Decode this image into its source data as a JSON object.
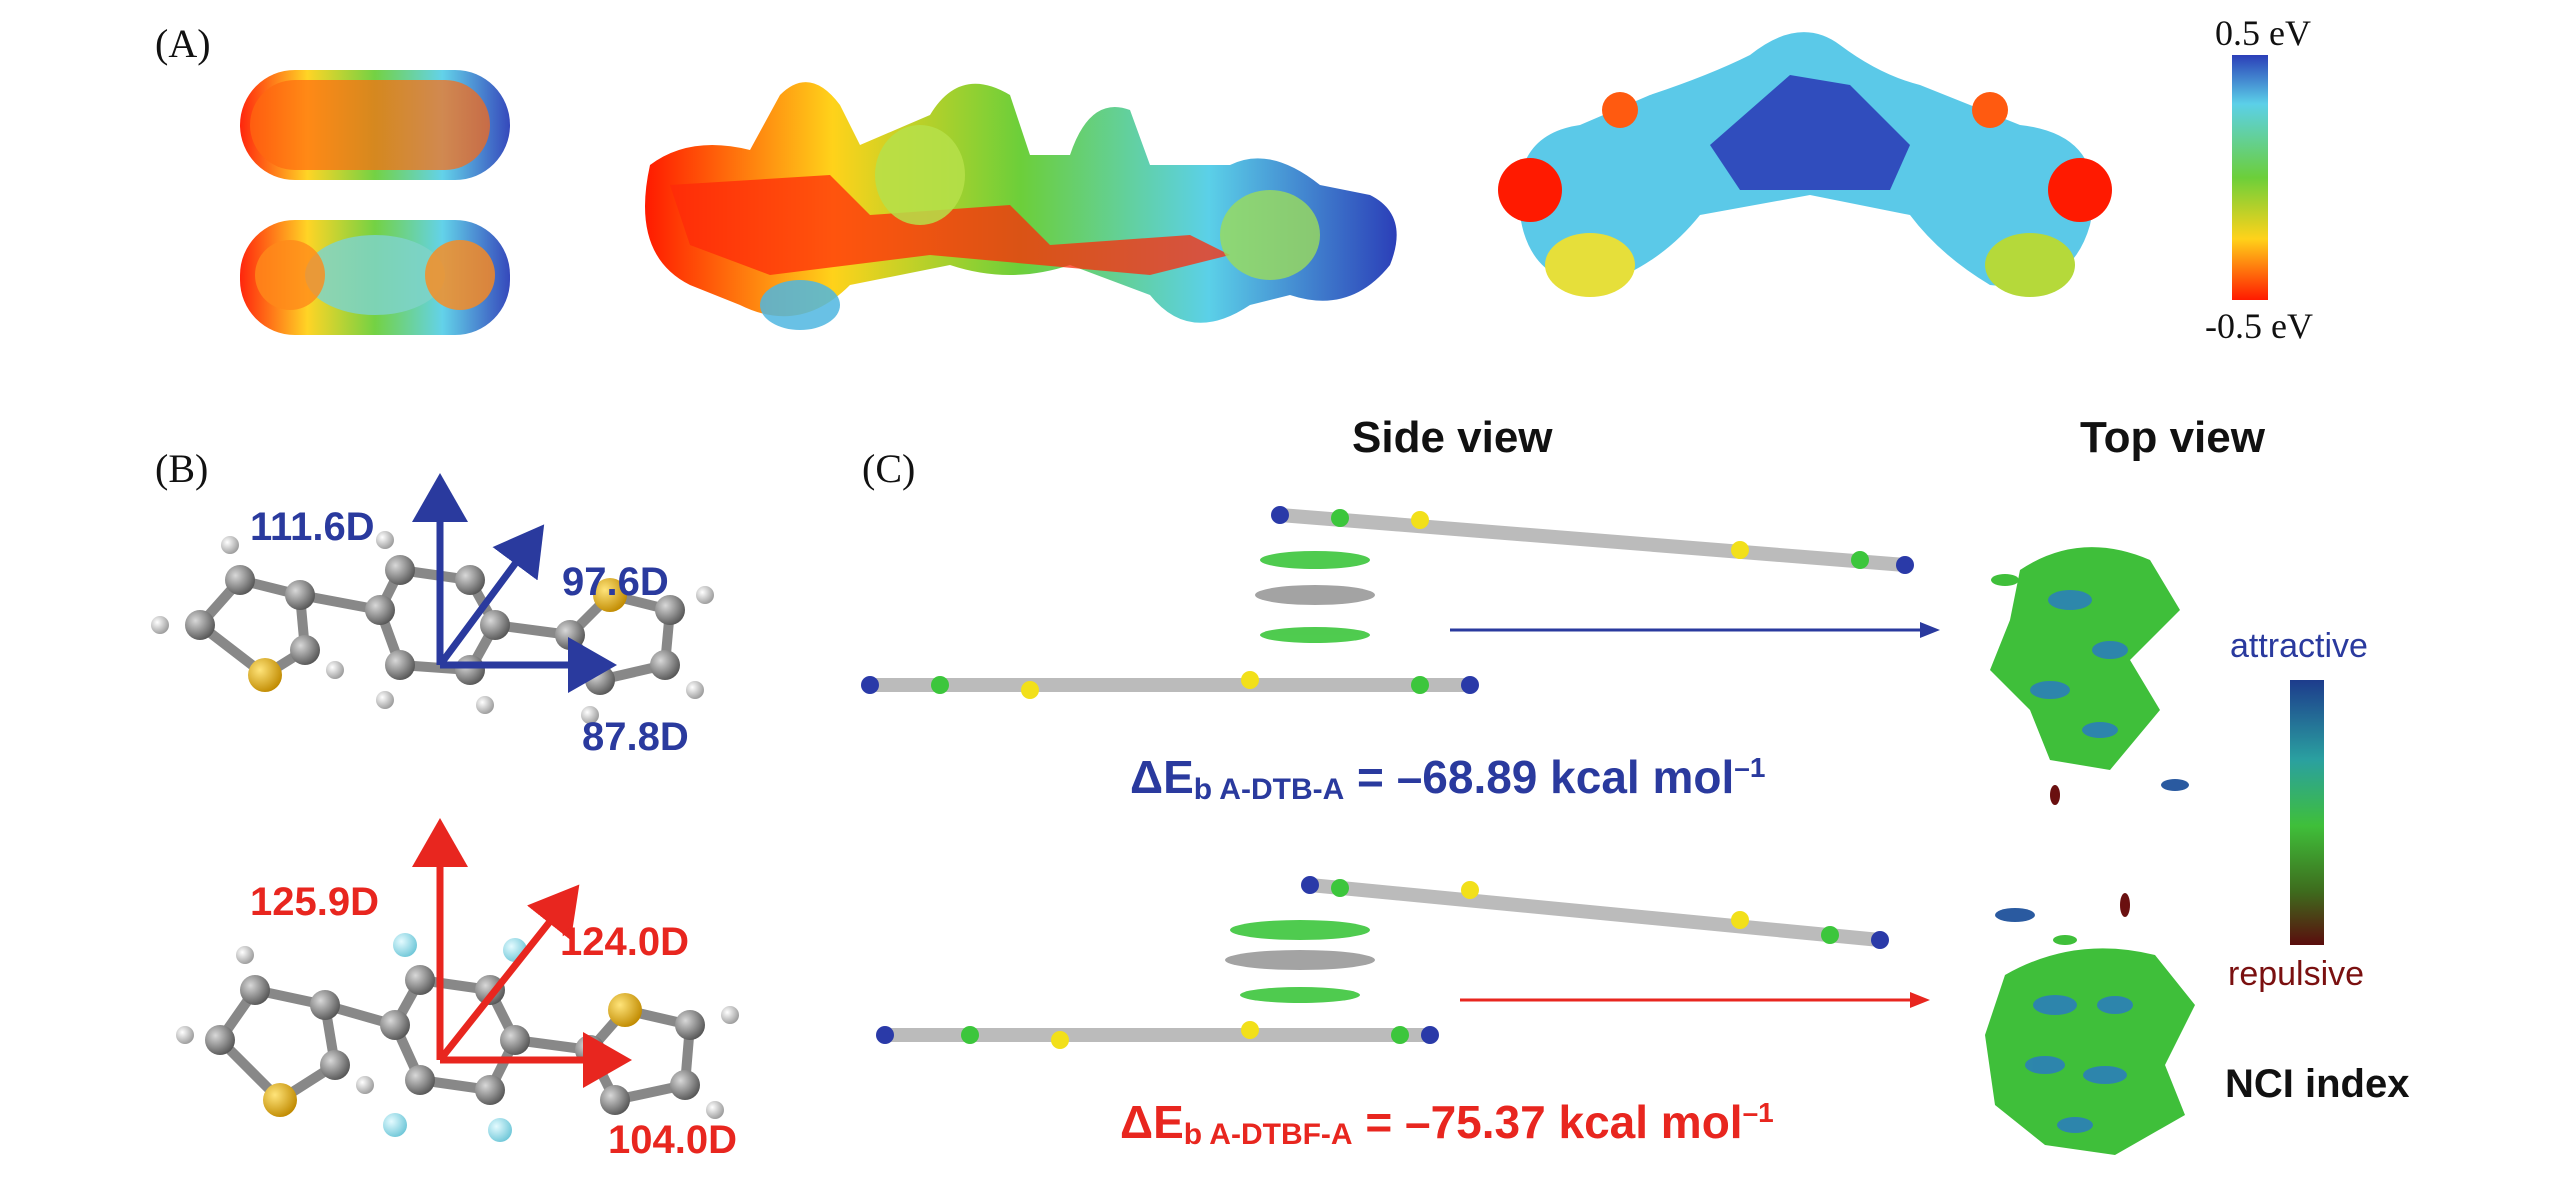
{
  "panels": {
    "a": "(A)",
    "b": "(B)",
    "c": "(C)"
  },
  "esp_colorbar": {
    "max": "0.5 eV",
    "min": "-0.5 eV"
  },
  "dipoles": {
    "dtb": [
      "111.6D",
      "97.6D",
      "87.8D"
    ],
    "dtbf": [
      "125.9D",
      "124.0D",
      "104.0D"
    ]
  },
  "views": {
    "side": "Side view",
    "top": "Top view"
  },
  "binding": {
    "dtb": {
      "prefix": "ΔE",
      "sub": "b A-DTB-A",
      "value": " = –68.89 kcal mol",
      "sup": "–1"
    },
    "dtbf": {
      "prefix": "ΔE",
      "sub": "b A-DTBF-A",
      "value": " = –75.37 kcal mol",
      "sup": "–1"
    }
  },
  "nci_colorbar": {
    "top": "attractive",
    "bottom": "repulsive",
    "title": "NCI index"
  },
  "colors": {
    "blue": "#2a3a9e",
    "red": "#e8261f"
  }
}
